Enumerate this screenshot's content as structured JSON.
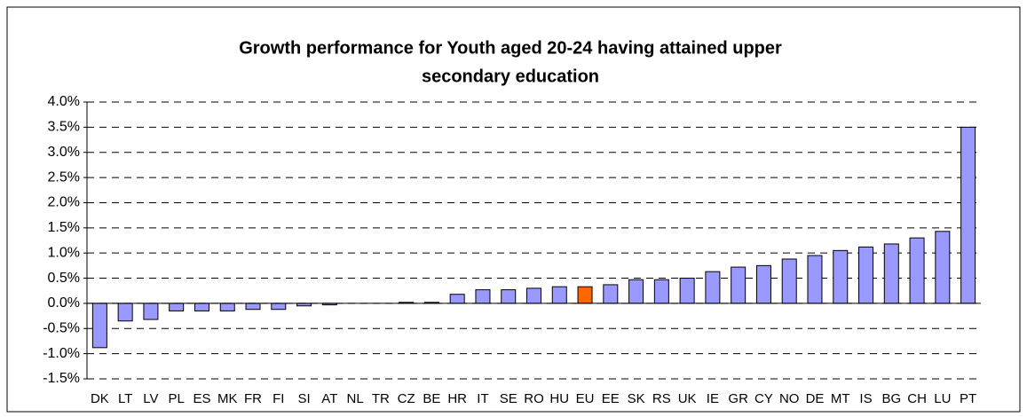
{
  "chart_data": {
    "type": "bar",
    "title": [
      "Growth performance for Youth aged 20-24 having attained upper",
      "secondary education"
    ],
    "categories": [
      "DK",
      "LT",
      "LV",
      "PL",
      "ES",
      "MK",
      "FR",
      "FI",
      "SI",
      "AT",
      "NL",
      "TR",
      "CZ",
      "BE",
      "HR",
      "IT",
      "SE",
      "RO",
      "HU",
      "EU",
      "EE",
      "SK",
      "RS",
      "UK",
      "IE",
      "GR",
      "CY",
      "NO",
      "DE",
      "MT",
      "IS",
      "BG",
      "CH",
      "LU",
      "PT"
    ],
    "values": [
      -0.88,
      -0.35,
      -0.32,
      -0.15,
      -0.15,
      -0.15,
      -0.12,
      -0.12,
      -0.05,
      -0.03,
      0,
      0,
      0.02,
      0.02,
      0.18,
      0.27,
      0.27,
      0.3,
      0.33,
      0.33,
      0.37,
      0.47,
      0.47,
      0.5,
      0.63,
      0.72,
      0.75,
      0.88,
      0.95,
      1.05,
      1.12,
      1.18,
      1.3,
      1.43,
      3.5
    ],
    "colors": [
      "#9999ff",
      "#9999ff",
      "#9999ff",
      "#9999ff",
      "#9999ff",
      "#9999ff",
      "#9999ff",
      "#9999ff",
      "#9999ff",
      "#9999ff",
      "#9999ff",
      "#9999ff",
      "#9999ff",
      "#9999ff",
      "#9999ff",
      "#9999ff",
      "#9999ff",
      "#9999ff",
      "#9999ff",
      "#ff6600",
      "#9999ff",
      "#9999ff",
      "#9999ff",
      "#9999ff",
      "#9999ff",
      "#9999ff",
      "#9999ff",
      "#9999ff",
      "#9999ff",
      "#9999ff",
      "#9999ff",
      "#9999ff",
      "#9999ff",
      "#9999ff",
      "#9999ff"
    ],
    "ylim": [
      -1.5,
      4
    ],
    "yticks": [
      {
        "value": -1.5,
        "label": "-1.5%"
      },
      {
        "value": -1,
        "label": "-1.0%"
      },
      {
        "value": -0.5,
        "label": "-0.5%"
      },
      {
        "value": 0,
        "label": "0.0%"
      },
      {
        "value": 0.5,
        "label": "0.5%"
      },
      {
        "value": 1,
        "label": "1.0%"
      },
      {
        "value": 1.5,
        "label": "1.5%"
      },
      {
        "value": 2,
        "label": "2.0%"
      },
      {
        "value": 2.5,
        "label": "2.5%"
      },
      {
        "value": 3,
        "label": "3.0%"
      },
      {
        "value": 3.5,
        "label": "3.5%"
      },
      {
        "value": 4,
        "label": "4.0%"
      }
    ],
    "grid": true
  }
}
